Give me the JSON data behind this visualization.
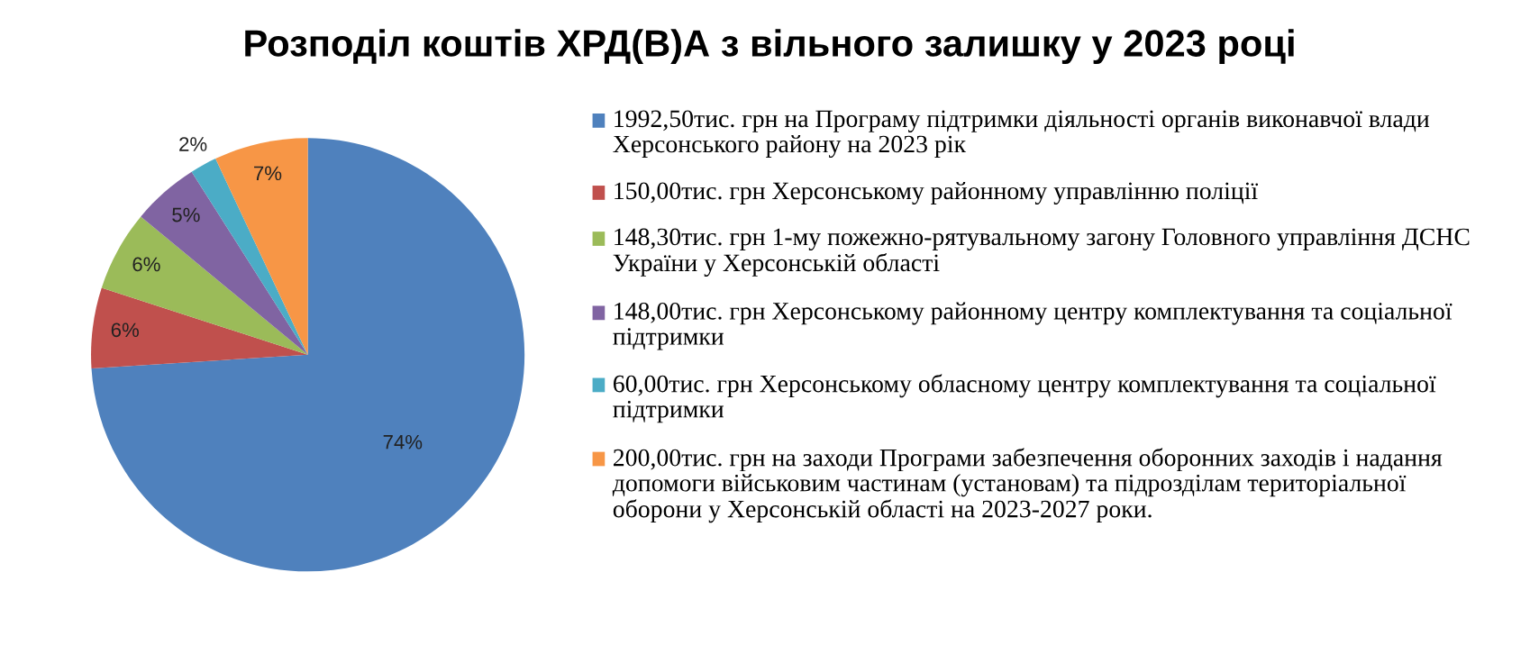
{
  "chart_data": {
    "type": "pie",
    "title": "Розподіл коштів ХРД(В)А з вільного залишку у 2023 році",
    "categories": [
      "1992,50тис. грн на Програму підтримки діяльності органів виконавчої влади Херсонського району на 2023 рік",
      "150,00тис. грн Херсонському районному управлінню поліції",
      "148,30тис. грн 1-му пожежно-рятувальному загону Головного управління ДСНС України у Херсонській області",
      "148,00тис. грн Херсонському районному центру комплектування та соціальної підтримки",
      "60,00тис. грн Херсонському обласному центру комплектування та соціальної підтримки",
      "200,00тис. грн на заходи Програми забезпечення оборонних заходів і надання допомоги військовим частинам (установам) та підрозділам територіальної оборони у Херсонській області на 2023-2027 роки."
    ],
    "values": [
      74,
      6,
      6,
      5,
      2,
      7
    ],
    "value_labels": [
      "74%",
      "6%",
      "6%",
      "5%",
      "2%",
      "7%"
    ],
    "colors": [
      "#4f81bd",
      "#c0504d",
      "#9bbb59",
      "#8064a2",
      "#4bacc6",
      "#f79646"
    ],
    "legend": "right"
  }
}
